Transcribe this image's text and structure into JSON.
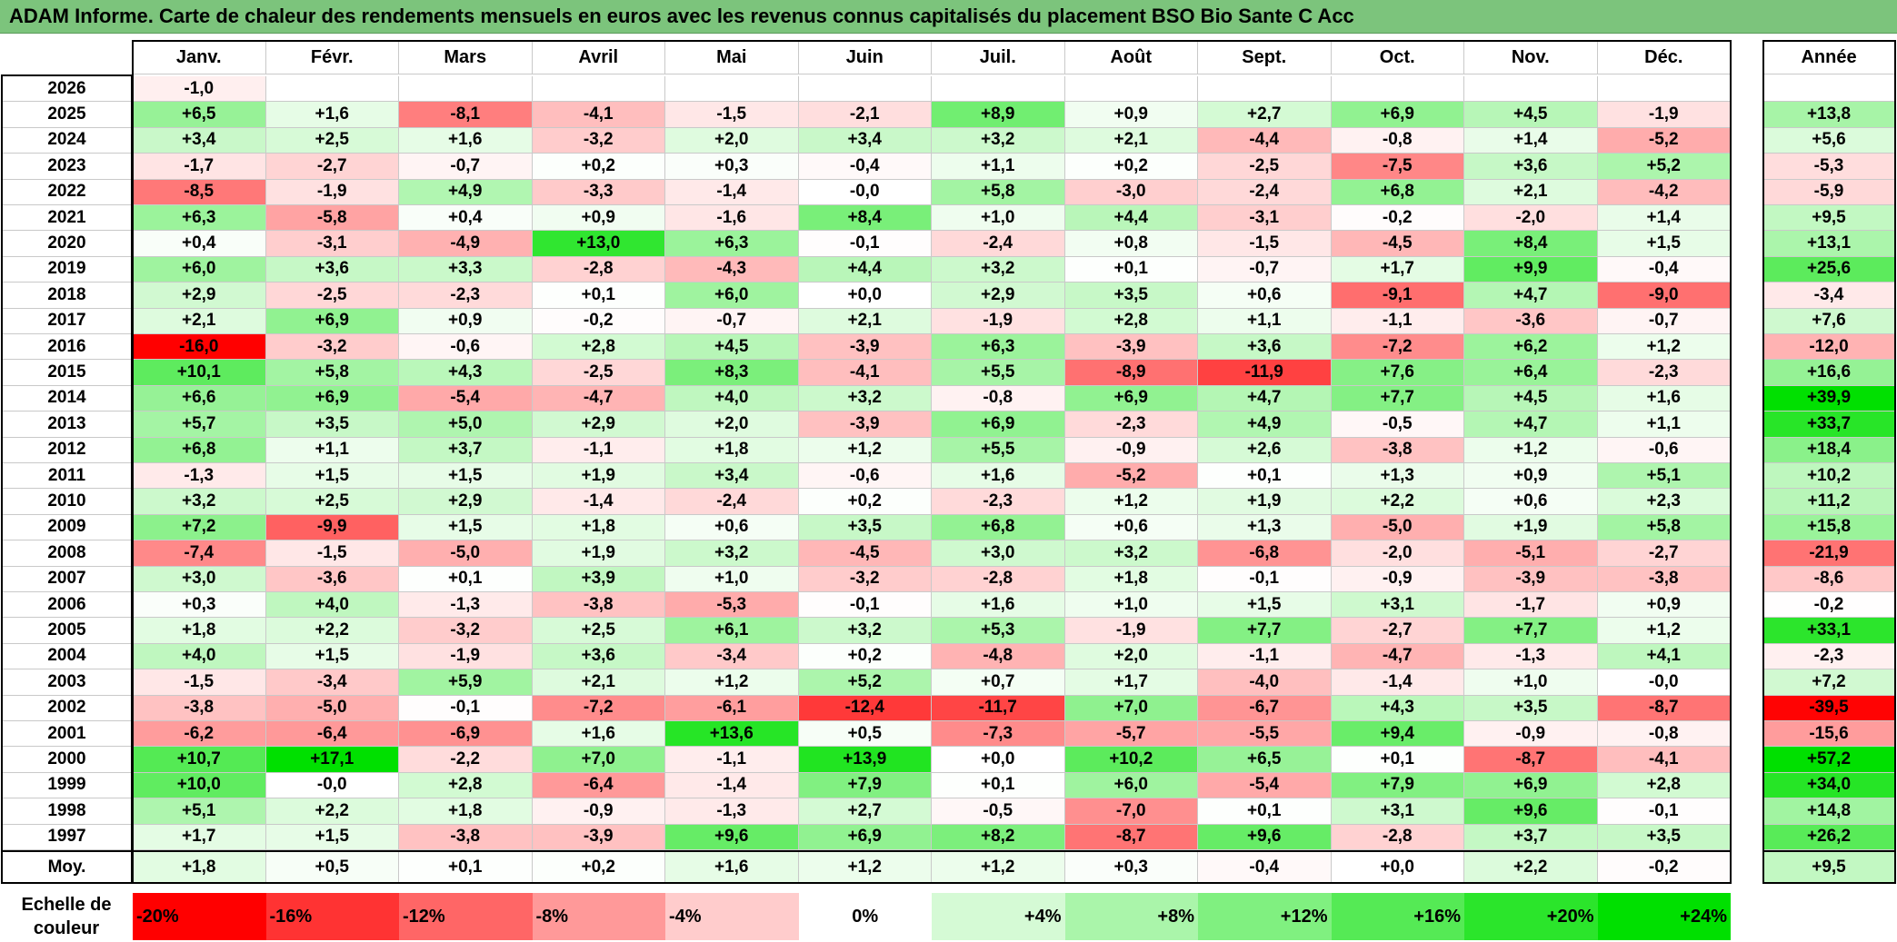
{
  "title": "ADAM Informe. Carte de chaleur des rendements mensuels en euros avec les revenus connus capitalisés du placement BSO Bio Sante C Acc",
  "colors": {
    "title_bg": "#7cc47c",
    "negative_max": "#ff0000",
    "neutral": "#ffffff",
    "positive_max": "#00e000"
  },
  "chart_data": {
    "type": "heatmap",
    "title": "ADAM Informe. Carte de chaleur des rendements mensuels en euros avec les revenus connus capitalisés du placement BSO Bio Sante C Acc",
    "columns": [
      "Janv.",
      "Févr.",
      "Mars",
      "Avril",
      "Mai",
      "Juin",
      "Juil.",
      "Août",
      "Sept.",
      "Oct.",
      "Nov.",
      "Déc."
    ],
    "year_header": "Année",
    "rows": [
      {
        "year": "2026",
        "values": [
          "-1,0",
          "",
          "",
          "",
          "",
          "",
          "",
          "",
          "",
          "",
          "",
          ""
        ],
        "annual": ""
      },
      {
        "year": "2025",
        "values": [
          "+6,5",
          "+1,6",
          "-8,1",
          "-4,1",
          "-1,5",
          "-2,1",
          "+8,9",
          "+0,9",
          "+2,7",
          "+6,9",
          "+4,5",
          "-1,9"
        ],
        "annual": "+13,8"
      },
      {
        "year": "2024",
        "values": [
          "+3,4",
          "+2,5",
          "+1,6",
          "-3,2",
          "+2,0",
          "+3,4",
          "+3,2",
          "+2,1",
          "-4,4",
          "-0,8",
          "+1,4",
          "-5,2"
        ],
        "annual": "+5,6"
      },
      {
        "year": "2023",
        "values": [
          "-1,7",
          "-2,7",
          "-0,7",
          "+0,2",
          "+0,3",
          "-0,4",
          "+1,1",
          "+0,2",
          "-2,5",
          "-7,5",
          "+3,6",
          "+5,2"
        ],
        "annual": "-5,3"
      },
      {
        "year": "2022",
        "values": [
          "-8,5",
          "-1,9",
          "+4,9",
          "-3,3",
          "-1,4",
          "-0,0",
          "+5,8",
          "-3,0",
          "-2,4",
          "+6,8",
          "+2,1",
          "-4,2"
        ],
        "annual": "-5,9"
      },
      {
        "year": "2021",
        "values": [
          "+6,3",
          "-5,8",
          "+0,4",
          "+0,9",
          "-1,6",
          "+8,4",
          "+1,0",
          "+4,4",
          "-3,1",
          "-0,2",
          "-2,0",
          "+1,4"
        ],
        "annual": "+9,5"
      },
      {
        "year": "2020",
        "values": [
          "+0,4",
          "-3,1",
          "-4,9",
          "+13,0",
          "+6,3",
          "-0,1",
          "-2,4",
          "+0,8",
          "-1,5",
          "-4,5",
          "+8,4",
          "+1,5"
        ],
        "annual": "+13,1"
      },
      {
        "year": "2019",
        "values": [
          "+6,0",
          "+3,6",
          "+3,3",
          "-2,8",
          "-4,3",
          "+4,4",
          "+3,2",
          "+0,1",
          "-0,7",
          "+1,7",
          "+9,9",
          "-0,4"
        ],
        "annual": "+25,6"
      },
      {
        "year": "2018",
        "values": [
          "+2,9",
          "-2,5",
          "-2,3",
          "+0,1",
          "+6,0",
          "+0,0",
          "+2,9",
          "+3,5",
          "+0,6",
          "-9,1",
          "+4,7",
          "-9,0"
        ],
        "annual": "-3,4"
      },
      {
        "year": "2017",
        "values": [
          "+2,1",
          "+6,9",
          "+0,9",
          "-0,2",
          "-0,7",
          "+2,1",
          "-1,9",
          "+2,8",
          "+1,1",
          "-1,1",
          "-3,6",
          "-0,7"
        ],
        "annual": "+7,6"
      },
      {
        "year": "2016",
        "values": [
          "-16,0",
          "-3,2",
          "-0,6",
          "+2,8",
          "+4,5",
          "-3,9",
          "+6,3",
          "-3,9",
          "+3,6",
          "-7,2",
          "+6,2",
          "+1,2"
        ],
        "annual": "-12,0"
      },
      {
        "year": "2015",
        "values": [
          "+10,1",
          "+5,8",
          "+4,3",
          "-2,5",
          "+8,3",
          "-4,1",
          "+5,5",
          "-8,9",
          "-11,9",
          "+7,6",
          "+6,4",
          "-2,3"
        ],
        "annual": "+16,6"
      },
      {
        "year": "2014",
        "values": [
          "+6,6",
          "+6,9",
          "-5,4",
          "-4,7",
          "+4,0",
          "+3,2",
          "-0,8",
          "+6,9",
          "+4,7",
          "+7,7",
          "+4,5",
          "+1,6"
        ],
        "annual": "+39,9"
      },
      {
        "year": "2013",
        "values": [
          "+5,7",
          "+3,5",
          "+5,0",
          "+2,9",
          "+2,0",
          "-3,9",
          "+6,9",
          "-2,3",
          "+4,9",
          "-0,5",
          "+4,7",
          "+1,1"
        ],
        "annual": "+33,7"
      },
      {
        "year": "2012",
        "values": [
          "+6,8",
          "+1,1",
          "+3,7",
          "-1,1",
          "+1,8",
          "+1,2",
          "+5,5",
          "-0,9",
          "+2,6",
          "-3,8",
          "+1,2",
          "-0,6"
        ],
        "annual": "+18,4"
      },
      {
        "year": "2011",
        "values": [
          "-1,3",
          "+1,5",
          "+1,5",
          "+1,9",
          "+3,4",
          "-0,6",
          "+1,6",
          "-5,2",
          "+0,1",
          "+1,3",
          "+0,9",
          "+5,1"
        ],
        "annual": "+10,2"
      },
      {
        "year": "2010",
        "values": [
          "+3,2",
          "+2,5",
          "+2,9",
          "-1,4",
          "-2,4",
          "+0,2",
          "-2,3",
          "+1,2",
          "+1,9",
          "+2,2",
          "+0,6",
          "+2,3"
        ],
        "annual": "+11,2"
      },
      {
        "year": "2009",
        "values": [
          "+7,2",
          "-9,9",
          "+1,5",
          "+1,8",
          "+0,6",
          "+3,5",
          "+6,8",
          "+0,6",
          "+1,3",
          "-5,0",
          "+1,9",
          "+5,8"
        ],
        "annual": "+15,8"
      },
      {
        "year": "2008",
        "values": [
          "-7,4",
          "-1,5",
          "-5,0",
          "+1,9",
          "+3,2",
          "-4,5",
          "+3,0",
          "+3,2",
          "-6,8",
          "-2,0",
          "-5,1",
          "-2,7"
        ],
        "annual": "-21,9"
      },
      {
        "year": "2007",
        "values": [
          "+3,0",
          "-3,6",
          "+0,1",
          "+3,9",
          "+1,0",
          "-3,2",
          "-2,8",
          "+1,8",
          "-0,1",
          "-0,9",
          "-3,9",
          "-3,8"
        ],
        "annual": "-8,6"
      },
      {
        "year": "2006",
        "values": [
          "+0,3",
          "+4,0",
          "-1,3",
          "-3,8",
          "-5,3",
          "-0,1",
          "+1,6",
          "+1,0",
          "+1,5",
          "+3,1",
          "-1,7",
          "+0,9"
        ],
        "annual": "-0,2"
      },
      {
        "year": "2005",
        "values": [
          "+1,8",
          "+2,2",
          "-3,2",
          "+2,5",
          "+6,1",
          "+3,2",
          "+5,3",
          "-1,9",
          "+7,7",
          "-2,7",
          "+7,7",
          "+1,2"
        ],
        "annual": "+33,1"
      },
      {
        "year": "2004",
        "values": [
          "+4,0",
          "+1,5",
          "-1,9",
          "+3,6",
          "-3,4",
          "+0,2",
          "-4,8",
          "+2,0",
          "-1,1",
          "-4,7",
          "-1,3",
          "+4,1"
        ],
        "annual": "-2,3"
      },
      {
        "year": "2003",
        "values": [
          "-1,5",
          "-3,4",
          "+5,9",
          "+2,1",
          "+1,2",
          "+5,2",
          "+0,7",
          "+1,7",
          "-4,0",
          "-1,4",
          "+1,0",
          "-0,0"
        ],
        "annual": "+7,2"
      },
      {
        "year": "2002",
        "values": [
          "-3,8",
          "-5,0",
          "-0,1",
          "-7,2",
          "-6,1",
          "-12,4",
          "-11,7",
          "+7,0",
          "-6,7",
          "+4,3",
          "+3,5",
          "-8,7"
        ],
        "annual": "-39,5"
      },
      {
        "year": "2001",
        "values": [
          "-6,2",
          "-6,4",
          "-6,9",
          "+1,6",
          "+13,6",
          "+0,5",
          "-7,3",
          "-5,7",
          "-5,5",
          "+9,4",
          "-0,9",
          "-0,8"
        ],
        "annual": "-15,6"
      },
      {
        "year": "2000",
        "values": [
          "+10,7",
          "+17,1",
          "-2,2",
          "+7,0",
          "-1,1",
          "+13,9",
          "+0,0",
          "+10,2",
          "+6,5",
          "+0,1",
          "-8,7",
          "-4,1"
        ],
        "annual": "+57,2"
      },
      {
        "year": "1999",
        "values": [
          "+10,0",
          "-0,0",
          "+2,8",
          "-6,4",
          "-1,4",
          "+7,9",
          "+0,1",
          "+6,0",
          "-5,4",
          "+7,9",
          "+6,9",
          "+2,8"
        ],
        "annual": "+34,0"
      },
      {
        "year": "1998",
        "values": [
          "+5,1",
          "+2,2",
          "+1,8",
          "-0,9",
          "-1,3",
          "+2,7",
          "-0,5",
          "-7,0",
          "+0,1",
          "+3,1",
          "+9,6",
          "-0,1"
        ],
        "annual": "+14,8"
      },
      {
        "year": "1997",
        "values": [
          "+1,7",
          "+1,5",
          "-3,8",
          "-3,9",
          "+9,6",
          "+6,9",
          "+8,2",
          "-8,7",
          "+9,6",
          "-2,8",
          "+3,7",
          "+3,5"
        ],
        "annual": "+26,2"
      }
    ],
    "average": {
      "label": "Moy.",
      "values": [
        "+1,8",
        "+0,5",
        "+0,1",
        "+0,2",
        "+1,6",
        "+1,2",
        "+1,2",
        "+0,3",
        "-0,4",
        "+0,0",
        "+2,2",
        "-0,2"
      ],
      "annual": "+9,5"
    },
    "scale": {
      "label": "Echelle de couleur",
      "stops": [
        "-20%",
        "-16%",
        "-12%",
        "-8%",
        "-4%",
        "0%",
        "+4%",
        "+8%",
        "+12%",
        "+16%",
        "+20%",
        "+24%"
      ],
      "stop_values": [
        -20,
        -16,
        -12,
        -8,
        -4,
        0,
        4,
        8,
        12,
        16,
        20,
        24
      ]
    }
  }
}
